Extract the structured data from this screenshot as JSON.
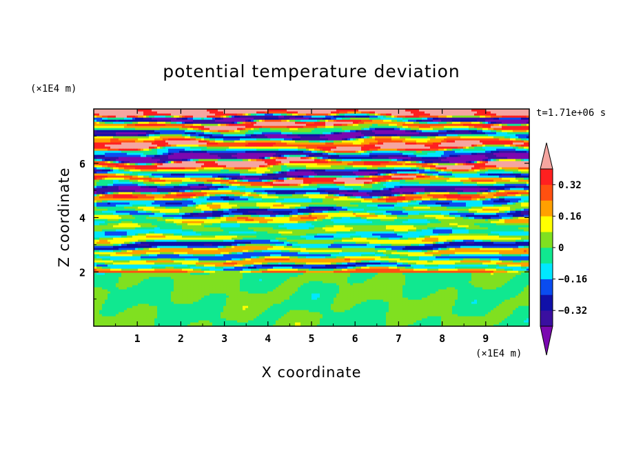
{
  "chart_data": {
    "type": "heatmap",
    "title": "potential temperature deviation",
    "xlabel": "X coordinate",
    "ylabel": "Z coordinate",
    "x_unit": "(×1E4 m)",
    "y_unit": "(×1E4 m)",
    "time_label": "t=1.71e+06 s",
    "xlim": [
      0,
      10
    ],
    "ylim": [
      0,
      8
    ],
    "x_ticks": [
      "1",
      "2",
      "3",
      "4",
      "5",
      "6",
      "7",
      "8",
      "9"
    ],
    "y_ticks": [
      "2",
      "4",
      "6"
    ],
    "colorbar": {
      "levels": [
        -0.4,
        -0.32,
        -0.24,
        -0.16,
        -0.08,
        0,
        0.08,
        0.16,
        0.24,
        0.32,
        0.4
      ],
      "tick_labels": [
        "0.32",
        "0.16",
        "0",
        "−0.16",
        "−0.32"
      ],
      "tick_values": [
        0.32,
        0.16,
        0,
        -0.16,
        -0.32
      ],
      "colors": [
        "#7a08b0",
        "#3a0fa0",
        "#1010a8",
        "#0a4cf0",
        "#00e8ff",
        "#10e890",
        "#80e020",
        "#ffff00",
        "#ffa000",
        "#ff5010",
        "#ff2020",
        "#f5a5a0"
      ],
      "extend": "both"
    },
    "field_description": "layered stratified bands above z≈2 (×1E4 m); weak near-zero deviation below"
  },
  "layers": [
    {
      "z": 7.85,
      "v": 0.45,
      "amp": 0.05
    },
    {
      "z": 7.65,
      "v": -0.45,
      "amp": 0.08
    },
    {
      "z": 7.45,
      "v": 0.45,
      "amp": 0.1
    },
    {
      "z": 7.25,
      "v": 0.0,
      "amp": 0.12
    },
    {
      "z": 7.05,
      "v": -0.45,
      "amp": 0.1
    },
    {
      "z": 6.85,
      "v": 0.2,
      "amp": 0.12
    },
    {
      "z": 6.65,
      "v": 0.45,
      "amp": 0.1
    },
    {
      "z": 6.45,
      "v": -0.12,
      "amp": 0.12
    },
    {
      "z": 6.25,
      "v": -0.45,
      "amp": 0.1
    },
    {
      "z": 6.0,
      "v": 0.45,
      "amp": 0.12
    },
    {
      "z": 5.8,
      "v": 0.05,
      "amp": 0.12
    },
    {
      "z": 5.6,
      "v": -0.4,
      "amp": 0.1
    },
    {
      "z": 5.4,
      "v": 0.42,
      "amp": 0.12
    },
    {
      "z": 5.2,
      "v": -0.05,
      "amp": 0.12
    },
    {
      "z": 5.0,
      "v": -0.42,
      "amp": 0.1
    },
    {
      "z": 4.8,
      "v": 0.3,
      "amp": 0.12
    },
    {
      "z": 4.6,
      "v": -0.2,
      "amp": 0.12
    },
    {
      "z": 4.4,
      "v": 0.12,
      "amp": 0.12
    },
    {
      "z": 4.2,
      "v": -0.3,
      "amp": 0.1
    },
    {
      "z": 4.0,
      "v": 0.2,
      "amp": 0.12
    },
    {
      "z": 3.8,
      "v": -0.1,
      "amp": 0.12
    },
    {
      "z": 3.6,
      "v": 0.08,
      "amp": 0.1
    },
    {
      "z": 3.4,
      "v": -0.15,
      "amp": 0.1
    },
    {
      "z": 3.2,
      "v": 0.14,
      "amp": 0.1
    },
    {
      "z": 3.0,
      "v": -0.3,
      "amp": 0.1
    },
    {
      "z": 2.8,
      "v": 0.22,
      "amp": 0.08
    },
    {
      "z": 2.6,
      "v": -0.22,
      "amp": 0.08
    },
    {
      "z": 2.4,
      "v": 0.25,
      "amp": 0.08
    },
    {
      "z": 2.2,
      "v": -0.3,
      "amp": 0.06
    },
    {
      "z": 2.05,
      "v": 0.3,
      "amp": 0.05
    }
  ]
}
